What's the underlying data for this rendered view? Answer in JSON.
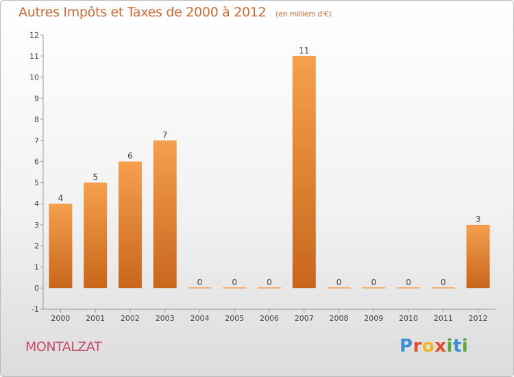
{
  "chart_data": {
    "type": "bar",
    "title": "Autres Impôts et Taxes de 2000 à 2012",
    "unit_label": "(en milliers d'€)",
    "categories": [
      "2000",
      "2001",
      "2002",
      "2003",
      "2004",
      "2005",
      "2006",
      "2007",
      "2008",
      "2009",
      "2010",
      "2011",
      "2012"
    ],
    "values": [
      4,
      5,
      6,
      7,
      0,
      0,
      0,
      11,
      0,
      0,
      0,
      0,
      3
    ],
    "data_labels": [
      "4",
      "5",
      "6",
      "7",
      "0",
      "0",
      "0",
      "11",
      "0",
      "0",
      "0",
      "0",
      "3"
    ],
    "y_ticks": [
      "-1",
      "0",
      "1",
      "2",
      "3",
      "4",
      "5",
      "6",
      "7",
      "8",
      "9",
      "10",
      "11",
      "12"
    ],
    "ylim": [
      -1,
      12
    ],
    "xlabel": "",
    "ylabel": "",
    "grid": false,
    "bar_color": "#f5a04e",
    "bar_color_dark": "#c8661b"
  },
  "footer": {
    "commune": "MONTALZAT"
  },
  "brand": {
    "letters": [
      "P",
      "r",
      "o",
      "x",
      "i",
      "t",
      "i"
    ],
    "letter_colors": [
      "#3b8fd4",
      "#e24c2a",
      "#f2b526",
      "#e24c2a",
      "#5aa83c",
      "#3b8fd4",
      "#5aa83c"
    ]
  }
}
